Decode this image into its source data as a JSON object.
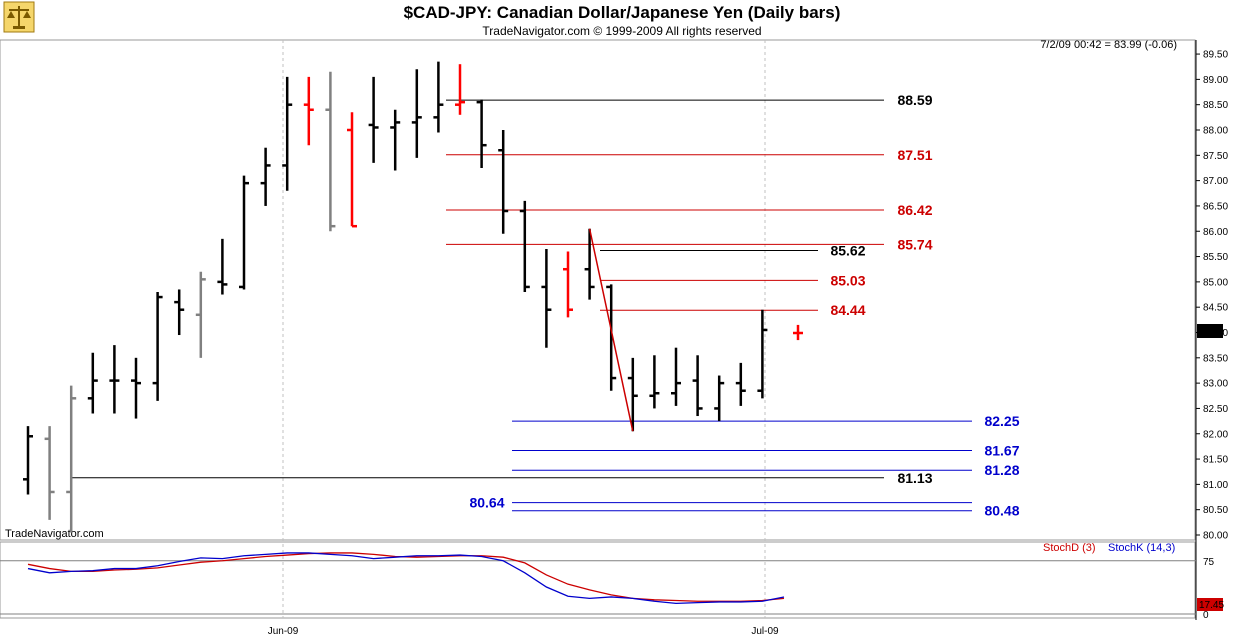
{
  "header": {
    "title": "$CAD-JPY:  Canadian Dollar/Japanese Yen  (Daily bars)",
    "subtitle": "TradeNavigator.com © 1999-2009 All rights reserved",
    "quote": "7/2/09 00:42 = 83.99 (-0.06)",
    "watermark": "TradeNavigator.com",
    "logo_icon": "balance-scale-icon"
  },
  "colors": {
    "up_bar": "#000000",
    "down_bar": "#ff0000",
    "gray_bar": "#808080",
    "fib_red": "#cc0000",
    "fib_blue": "#0000cc",
    "line_black": "#000000",
    "stoch_d": "#cc0000",
    "stoch_k": "#0000cc",
    "grid": "#c0c0c0"
  },
  "chart_data": [
    {
      "type": "ohlc",
      "title": "$CAD-JPY:  Canadian Dollar/Japanese Yen  (Daily bars)",
      "ylim": [
        80.0,
        89.6
      ],
      "yticks": [
        "89.50",
        "89.00",
        "88.50",
        "88.00",
        "87.50",
        "87.00",
        "86.50",
        "86.00",
        "85.50",
        "85.00",
        "84.50",
        "84.00",
        "83.50",
        "83.00",
        "82.50",
        "82.00",
        "81.50",
        "81.00",
        "80.50",
        "80.00"
      ],
      "xticks": [
        "Jun-09",
        "Jul-09"
      ],
      "last_price_label": "83.99",
      "bars": [
        {
          "h": 82.15,
          "l": 80.8,
          "o": 81.1,
          "c": 81.95,
          "col": "black"
        },
        {
          "h": 82.15,
          "l": 80.3,
          "o": 81.9,
          "c": 80.85,
          "col": "gray"
        },
        {
          "h": 82.95,
          "l": 80.05,
          "o": 80.85,
          "c": 82.7,
          "col": "gray"
        },
        {
          "h": 83.6,
          "l": 82.4,
          "o": 82.7,
          "c": 83.05,
          "col": "black"
        },
        {
          "h": 83.75,
          "l": 82.4,
          "o": 83.05,
          "c": 83.05,
          "col": "black"
        },
        {
          "h": 83.5,
          "l": 82.3,
          "o": 83.05,
          "c": 83.0,
          "col": "black"
        },
        {
          "h": 84.8,
          "l": 82.65,
          "o": 83.0,
          "c": 84.7,
          "col": "black"
        },
        {
          "h": 84.85,
          "l": 83.95,
          "o": 84.6,
          "c": 84.45,
          "col": "black"
        },
        {
          "h": 85.2,
          "l": 83.5,
          "o": 84.35,
          "c": 85.05,
          "col": "gray"
        },
        {
          "h": 85.85,
          "l": 84.75,
          "o": 85.0,
          "c": 84.95,
          "col": "black"
        },
        {
          "h": 87.1,
          "l": 84.85,
          "o": 84.9,
          "c": 86.95,
          "col": "black"
        },
        {
          "h": 87.65,
          "l": 86.5,
          "o": 86.95,
          "c": 87.3,
          "col": "black"
        },
        {
          "h": 89.05,
          "l": 86.8,
          "o": 87.3,
          "c": 88.5,
          "col": "black"
        },
        {
          "h": 89.05,
          "l": 87.7,
          "o": 88.5,
          "c": 88.4,
          "col": "red"
        },
        {
          "h": 89.15,
          "l": 86.0,
          "o": 88.4,
          "c": 86.1,
          "col": "gray"
        },
        {
          "h": 88.35,
          "l": 86.1,
          "o": 88.0,
          "c": 86.1,
          "col": "red"
        },
        {
          "h": 89.05,
          "l": 87.35,
          "o": 88.1,
          "c": 88.05,
          "col": "black"
        },
        {
          "h": 88.4,
          "l": 87.2,
          "o": 88.05,
          "c": 88.15,
          "col": "black"
        },
        {
          "h": 89.2,
          "l": 87.45,
          "o": 88.15,
          "c": 88.25,
          "col": "black"
        },
        {
          "h": 89.35,
          "l": 87.95,
          "o": 88.25,
          "c": 88.5,
          "col": "black"
        },
        {
          "h": 89.3,
          "l": 88.3,
          "o": 88.5,
          "c": 88.55,
          "col": "red"
        },
        {
          "h": 88.6,
          "l": 87.25,
          "o": 88.55,
          "c": 87.7,
          "col": "black"
        },
        {
          "h": 88.0,
          "l": 85.95,
          "o": 87.6,
          "c": 86.4,
          "col": "black"
        },
        {
          "h": 86.6,
          "l": 84.8,
          "o": 86.4,
          "c": 84.9,
          "col": "black"
        },
        {
          "h": 85.65,
          "l": 83.7,
          "o": 84.9,
          "c": 84.45,
          "col": "black"
        },
        {
          "h": 85.6,
          "l": 84.3,
          "o": 85.25,
          "c": 84.45,
          "col": "red"
        },
        {
          "h": 86.05,
          "l": 84.65,
          "o": 85.25,
          "c": 84.9,
          "col": "black"
        },
        {
          "h": 84.95,
          "l": 82.85,
          "o": 84.9,
          "c": 83.1,
          "col": "black"
        },
        {
          "h": 83.5,
          "l": 82.05,
          "o": 83.1,
          "c": 82.75,
          "col": "black"
        },
        {
          "h": 83.55,
          "l": 82.5,
          "o": 82.75,
          "c": 82.8,
          "col": "black"
        },
        {
          "h": 83.7,
          "l": 82.55,
          "o": 82.8,
          "c": 83.0,
          "col": "black"
        },
        {
          "h": 83.55,
          "l": 82.35,
          "o": 83.05,
          "c": 82.5,
          "col": "black"
        },
        {
          "h": 83.15,
          "l": 82.25,
          "o": 82.5,
          "c": 83.0,
          "col": "black"
        },
        {
          "h": 83.4,
          "l": 82.55,
          "o": 83.0,
          "c": 82.85,
          "col": "black"
        },
        {
          "h": 84.45,
          "l": 82.7,
          "o": 82.85,
          "c": 84.05,
          "col": "black"
        },
        {
          "h": 84.15,
          "l": 83.85,
          "o": 83.99,
          "c": 83.99,
          "col": "red"
        }
      ],
      "levels": [
        {
          "value": 88.59,
          "label": "88.59",
          "color": "#000000",
          "from_bar": 20,
          "to_bar": 38
        },
        {
          "value": 87.51,
          "label": "87.51",
          "color": "#cc0000",
          "from_bar": 20,
          "to_bar": 38
        },
        {
          "value": 86.42,
          "label": "86.42",
          "color": "#cc0000",
          "from_bar": 20,
          "to_bar": 38
        },
        {
          "value": 85.74,
          "label": "85.74",
          "color": "#cc0000",
          "from_bar": 20,
          "to_bar": 38
        },
        {
          "value": 85.62,
          "label": "85.62",
          "color": "#000000",
          "from_bar": 26,
          "to_bar": 36
        },
        {
          "value": 85.03,
          "label": "85.03",
          "color": "#cc0000",
          "from_bar": 26,
          "to_bar": 36
        },
        {
          "value": 84.44,
          "label": "84.44",
          "color": "#cc0000",
          "from_bar": 26,
          "to_bar": 36
        },
        {
          "value": 82.25,
          "label": "82.25",
          "color": "#0000cc",
          "from_bar": 23,
          "to_bar": 43
        },
        {
          "value": 81.67,
          "label": "81.67",
          "color": "#0000cc",
          "from_bar": 23,
          "to_bar": 43
        },
        {
          "value": 81.28,
          "label": "81.28",
          "color": "#0000cc",
          "from_bar": 23,
          "to_bar": 43
        },
        {
          "value": 81.13,
          "label": "81.13",
          "color": "#000000",
          "from_bar": 2,
          "to_bar": 39
        },
        {
          "value": 80.64,
          "label": "80.64",
          "color": "#0000cc",
          "from_bar": 23,
          "to_bar": 43
        },
        {
          "value": 80.48,
          "label": "80.48",
          "color": "#0000cc",
          "from_bar": 23,
          "to_bar": 43
        }
      ],
      "swing_line": {
        "from_bar": 26,
        "from_value": 86.05,
        "to_bar": 28,
        "to_value": 82.05,
        "color": "#cc0000"
      }
    },
    {
      "type": "line",
      "ylim": [
        0,
        100
      ],
      "yticks": [
        "75",
        "0"
      ],
      "series": [
        {
          "name": "StochD (3)",
          "color": "#cc0000",
          "values": [
            70,
            64,
            60,
            60,
            62,
            63,
            65,
            69,
            73,
            75,
            78,
            81,
            83,
            85,
            86,
            86,
            84,
            81,
            80,
            81,
            82,
            82,
            80,
            72,
            55,
            42,
            34,
            27,
            22,
            20,
            19,
            18,
            18,
            18,
            19,
            22
          ]
        },
        {
          "name": "StochK (14,3)",
          "color": "#0000cc",
          "values": [
            64,
            58,
            60,
            61,
            64,
            64,
            68,
            74,
            79,
            78,
            82,
            84,
            86,
            86,
            84,
            82,
            78,
            80,
            82,
            82,
            83,
            81,
            75,
            58,
            38,
            25,
            22,
            24,
            22,
            18,
            15,
            16,
            17,
            17,
            18,
            24
          ]
        }
      ],
      "last_label": "17.45"
    }
  ]
}
